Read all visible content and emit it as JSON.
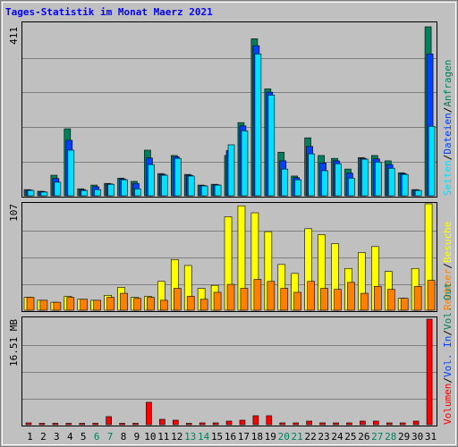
{
  "title": "Tages-Statistik im Monat Maerz 2021",
  "legend_separator": "/",
  "chart_data": [
    {
      "type": "bar",
      "ylim": [
        0,
        411
      ],
      "yticks": [
        411
      ],
      "series": [
        {
          "name": "Anfragen",
          "color": "#00805c",
          "values": [
            15,
            11,
            50,
            163,
            17,
            26,
            30,
            43,
            35,
            111,
            54,
            98,
            52,
            26,
            28,
            98,
            178,
            382,
            260,
            106,
            48,
            141,
            98,
            91,
            65,
            93,
            98,
            85,
            56,
            15,
            411
          ]
        },
        {
          "name": "Dateien",
          "color": "#0040ff",
          "values": [
            14,
            10,
            42,
            135,
            15,
            22,
            29,
            41,
            30,
            92,
            52,
            95,
            50,
            25,
            27,
            110,
            170,
            365,
            252,
            85,
            44,
            120,
            80,
            85,
            55,
            91,
            90,
            76,
            54,
            14,
            345
          ]
        },
        {
          "name": "Seiten",
          "color": "#00e0ff",
          "values": [
            13,
            9,
            33,
            111,
            13,
            15,
            28,
            39,
            17,
            76,
            50,
            91,
            48,
            24,
            26,
            124,
            158,
            345,
            245,
            65,
            39,
            102,
            61,
            78,
            43,
            89,
            82,
            67,
            52,
            13,
            169
          ]
        }
      ]
    },
    {
      "type": "bar",
      "ylim": [
        0,
        107
      ],
      "yticks": [
        107
      ],
      "series": [
        {
          "name": "Besuche",
          "color": "#ffff00",
          "values": [
            13,
            10,
            8,
            14,
            11,
            10,
            15,
            23,
            13,
            14,
            29,
            51,
            45,
            22,
            25,
            94,
            105,
            98,
            79,
            46,
            37,
            82,
            76,
            67,
            42,
            58,
            64,
            39,
            12,
            42,
            107
          ]
        },
        {
          "name": "Rechner",
          "color": "#ff8000",
          "values": [
            13,
            10,
            8,
            13,
            11,
            10,
            13,
            17,
            12,
            13,
            10,
            22,
            14,
            11,
            18,
            26,
            22,
            31,
            29,
            22,
            18,
            29,
            22,
            21,
            28,
            17,
            24,
            21,
            12,
            24,
            30
          ]
        }
      ]
    },
    {
      "type": "bar",
      "ylim": [
        0,
        16.51
      ],
      "yticks": [
        {
          "value": 16.51,
          "label": "16.51 MB"
        }
      ],
      "categories": [
        "1",
        "2",
        "3",
        "4",
        "5",
        "6",
        "7",
        "8",
        "9",
        "10",
        "11",
        "12",
        "13",
        "14",
        "15",
        "16",
        "17",
        "18",
        "19",
        "20",
        "21",
        "22",
        "23",
        "24",
        "25",
        "26",
        "27",
        "28",
        "29",
        "30",
        "31"
      ],
      "category_colors": [
        "#000000",
        "#000000",
        "#000000",
        "#000000",
        "#000000",
        "#00805c",
        "#00805c",
        "#000000",
        "#000000",
        "#000000",
        "#000000",
        "#000000",
        "#00805c",
        "#00805c",
        "#000000",
        "#000000",
        "#000000",
        "#000000",
        "#000000",
        "#00805c",
        "#00805c",
        "#000000",
        "#000000",
        "#000000",
        "#000000",
        "#000000",
        "#00805c",
        "#00805c",
        "#000000",
        "#000000",
        "#000000"
      ],
      "series": [
        {
          "name": "Vol. Out",
          "color": "#00805c"
        },
        {
          "name": "Vol. In",
          "color": "#0040ff"
        },
        {
          "name": "Volumen",
          "color": "#ff0000",
          "values": [
            0.28,
            0.21,
            0.21,
            0.21,
            0.21,
            0.21,
            1.26,
            0.21,
            0.21,
            3.5,
            0.84,
            0.7,
            0.21,
            0.28,
            0.28,
            0.56,
            0.7,
            1.4,
            1.4,
            0.28,
            0.28,
            0.56,
            0.28,
            0.28,
            0.28,
            0.56,
            0.56,
            0.28,
            0.28,
            0.56,
            16.51
          ]
        }
      ]
    }
  ]
}
